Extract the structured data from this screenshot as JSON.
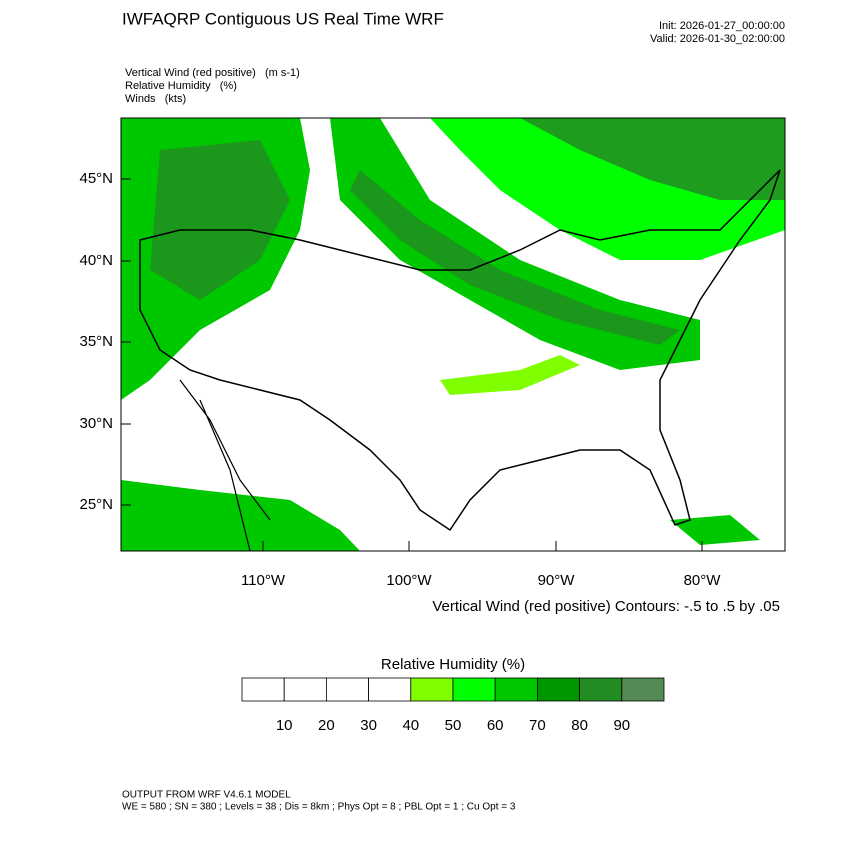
{
  "header": {
    "title": "IWFAQRP Contiguous US Real Time WRF",
    "init": "Init: 2026-01-27_00:00:00",
    "valid": "Valid: 2026-01-30_02:00:00"
  },
  "fields": [
    "Vertical Wind (red positive)   (m s-1)",
    "Relative Humidity   (%)",
    "Winds   (kts)"
  ],
  "map": {
    "lat_labels": [
      "45°N",
      "40°N",
      "35°N",
      "30°N",
      "25°N"
    ],
    "lon_labels": [
      "110°W",
      "100°W",
      "90°W",
      "80°W"
    ],
    "contour_note": "Vertical Wind (red positive) Contours: -.5 to .5 by .05"
  },
  "colorbar": {
    "title": "Relative Humidity  (%)",
    "labels": [
      10,
      20,
      30,
      40,
      50,
      60,
      70,
      80,
      90
    ],
    "colors": [
      "#ffffff",
      "#ffffff",
      "#ffffff",
      "#ffffff",
      "#80ff00",
      "#00ff00",
      "#00c800",
      "#009600",
      "#228b22",
      "#548b54"
    ]
  },
  "footer": {
    "line1": "OUTPUT FROM WRF V4.6.1 MODEL",
    "line2": "WE = 580 ; SN = 380 ; Levels = 38 ; Dis = 8km ; Phys Opt = 8 ; PBL Opt = 1 ; Cu Opt = 3"
  }
}
